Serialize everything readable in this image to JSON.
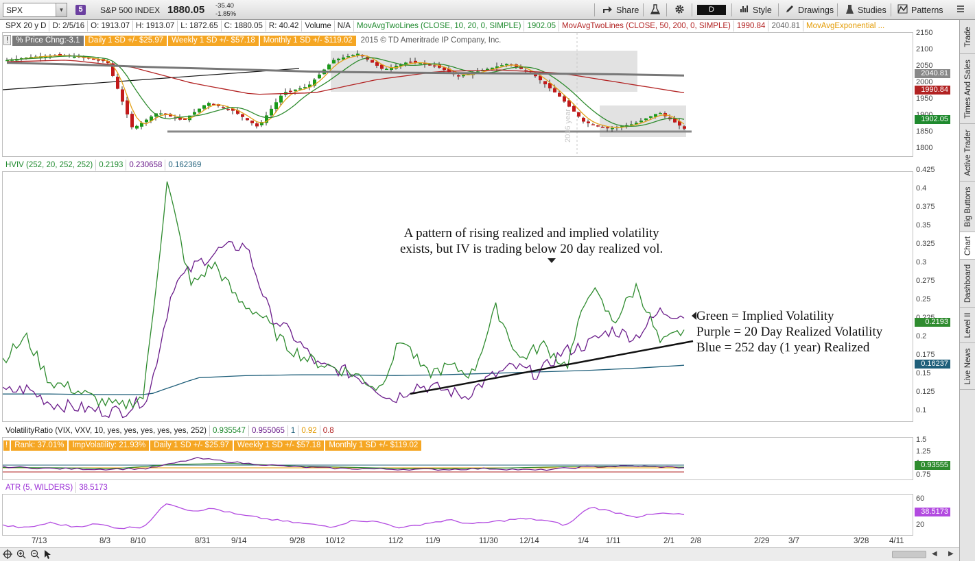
{
  "toolbar": {
    "symbol": "SPX",
    "link_number": "5",
    "description": "S&P 500 INDEX",
    "last": "1880.05",
    "net_change": "-35.40",
    "pct_change": "-1.85%",
    "share_label": "Share",
    "period": "D",
    "style_label": "Style",
    "drawings_label": "Drawings",
    "studies_label": "Studies",
    "patterns_label": "Patterns"
  },
  "price_info": {
    "chart_id": "SPX 20 y D",
    "date": "D: 2/5/16",
    "open": "O: 1913.07",
    "high": "H: 1913.07",
    "low": "L: 1872.65",
    "close": "C: 1880.05",
    "range": "R: 40.42",
    "volume_label": "Volume",
    "volume_value": "N/A",
    "mav1_label": "MovAvgTwoLines (CLOSE, 10, 20, 0, SIMPLE)",
    "mav1_value": "1902.05",
    "mav2_label": "MovAvgTwoLines (CLOSE, 50, 200, 0, SIMPLE)",
    "mav2_value1": "1990.84",
    "mav2_value2": "2040.81",
    "mav3_label": "MovAvgExponential ..."
  },
  "price_bubbles": {
    "price_change": "% Price Chng:-3.1",
    "daily_sd": "Daily 1 SD +/- $25.97",
    "weekly_sd": "Weekly 1 SD +/- $57.18",
    "monthly_sd": "Monthly 1 SD +/- $119.02",
    "copyright": "2015 © TD Ameritrade IP Company, Inc."
  },
  "price_axis": {
    "ticks": [
      "2150",
      "2100",
      "2050",
      "2000",
      "1950",
      "1900",
      "1850",
      "1800"
    ],
    "tags": [
      "2040.81",
      "1990.84",
      "1902.05"
    ],
    "tag_colors": [
      "#888888",
      "#b22222",
      "#1f8a2e"
    ]
  },
  "year_marker": "2016 year",
  "hviv": {
    "label": "HVIV (252, 20, 252, 252)",
    "v1": "0.2193",
    "v2": "0.230658",
    "v3": "0.162369",
    "ticks": [
      "0.425",
      "0.4",
      "0.375",
      "0.35",
      "0.325",
      "0.3",
      "0.275",
      "0.25",
      "0.225",
      "0.2",
      "0.175",
      "0.15",
      "0.125",
      "0.1"
    ],
    "tag_iv": "0.2193",
    "tag_hv252": "0.16237"
  },
  "annotations": {
    "pattern_line1": "A pattern of rising realized and implied volatility",
    "pattern_line2": "exists, but IV is trading below 20 day realized vol.",
    "legend_green": "Green = Implied Volatility",
    "legend_purple": "Purple = 20 Day Realized Volatility",
    "legend_blue": "Blue = 252 day (1 year) Realized"
  },
  "vol_ratio": {
    "label": "VolatilityRatio (VIX, VXV, 10, yes, yes, yes, yes, yes, 252)",
    "v1": "0.935547",
    "v2": "0.955065",
    "v3": "1",
    "v4": "0.92",
    "v5": "0.8",
    "rank": "Rank: 37.01%",
    "imp_vol": "ImpVolatility: 21.93%",
    "daily_sd": "Daily 1 SD +/- $25.97",
    "weekly_sd": "Weekly 1 SD +/- $57.18",
    "monthly_sd": "Monthly 1 SD +/- $119.02",
    "ticks": [
      "1.5",
      "1.25",
      "1",
      "0.75"
    ],
    "tag": "0.93555"
  },
  "atr": {
    "label": "ATR (5, WILDERS)",
    "value": "38.5173",
    "ticks": [
      "60",
      "40",
      "20"
    ],
    "tag": "38.5173"
  },
  "x_axis": [
    "7/13",
    "8/3",
    "8/10",
    "8/31",
    "9/14",
    "9/28",
    "10/12",
    "11/2",
    "11/9",
    "11/30",
    "12/14",
    "1/4",
    "1/11",
    "2/1",
    "2/8",
    "2/29",
    "3/7",
    "3/28",
    "4/11"
  ],
  "side_tabs": [
    "Trade",
    "Times And Sales",
    "Active Trader",
    "Big Buttons",
    "Chart",
    "Dashboard",
    "Level II",
    "Live News"
  ],
  "colors": {
    "iv_green": "#2e8b2e",
    "hv20_purple": "#6a1b8a",
    "hv252_blue": "#1f5f7a",
    "orange_bubble": "#f5a623",
    "grey_bubble": "#7a7a7a"
  }
}
